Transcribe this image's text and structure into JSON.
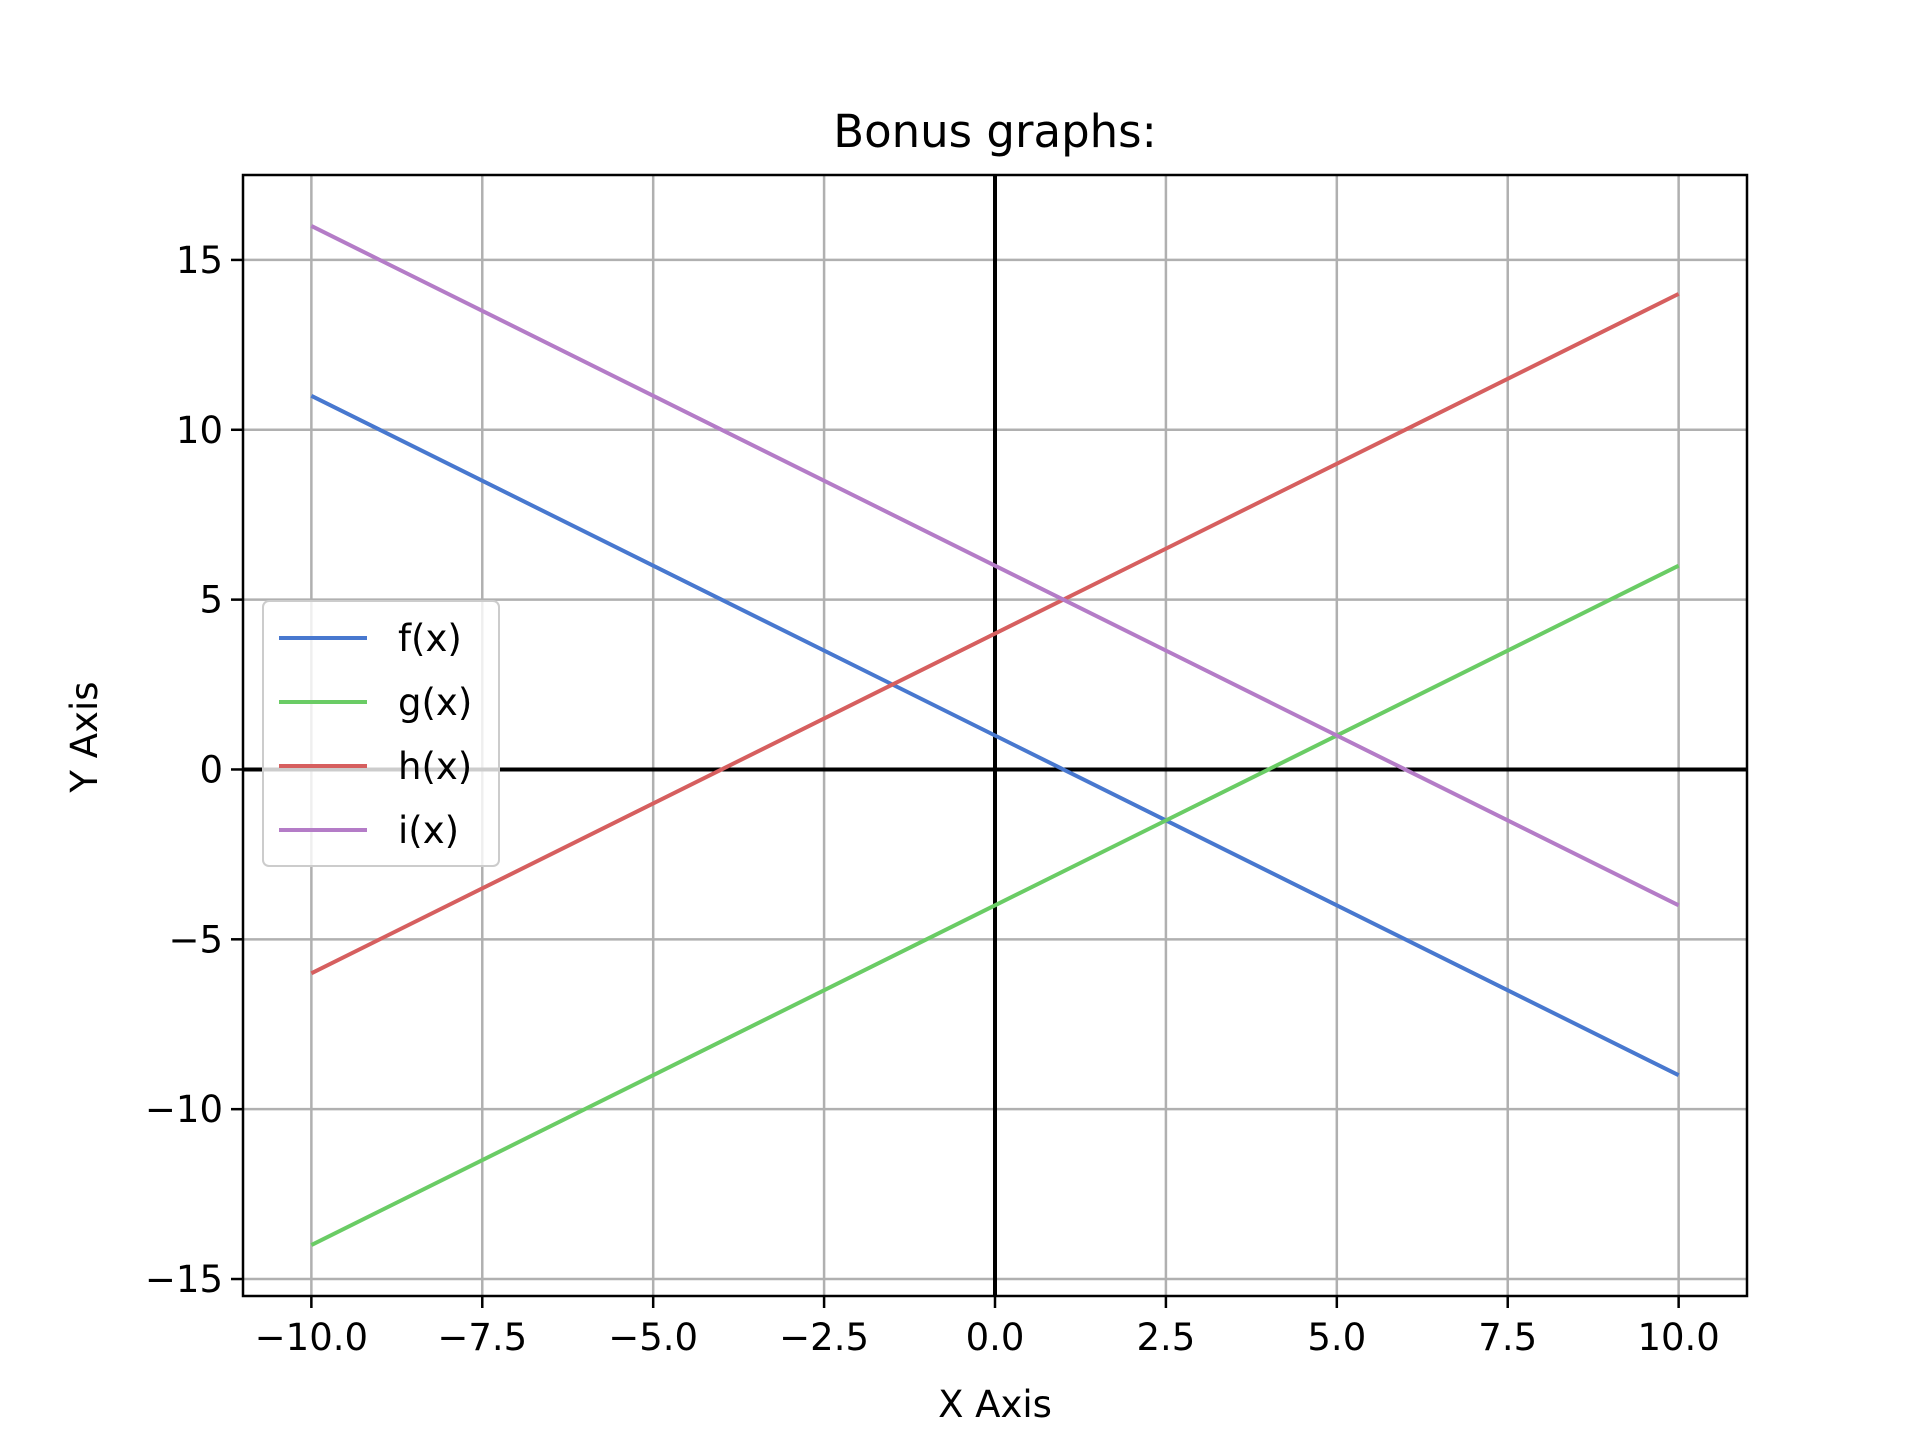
{
  "chart_data": {
    "type": "line",
    "title": "Bonus graphs:",
    "xlabel": "X Axis",
    "ylabel": "Y Axis",
    "xlim": [
      -11,
      11
    ],
    "ylim": [
      -15.5,
      17.5
    ],
    "grid": true,
    "legend_position": "center-left",
    "x_ticks": [
      -10.0,
      -7.5,
      -5.0,
      -2.5,
      0.0,
      2.5,
      5.0,
      7.5,
      10.0
    ],
    "x_tick_labels": [
      "−10.0",
      "−7.5",
      "−5.0",
      "−2.5",
      "0.0",
      "2.5",
      "5.0",
      "7.5",
      "10.0"
    ],
    "y_ticks": [
      -15,
      -10,
      -5,
      0,
      5,
      10,
      15
    ],
    "y_tick_labels": [
      "−15",
      "−10",
      "−5",
      "0",
      "5",
      "10",
      "15"
    ],
    "x": [
      -10,
      0,
      10
    ],
    "series": [
      {
        "name": "f(x)",
        "color": "#4878cf",
        "values": [
          11,
          1,
          -9
        ]
      },
      {
        "name": "g(x)",
        "color": "#6acc65",
        "values": [
          -14,
          -4,
          6
        ]
      },
      {
        "name": "h(x)",
        "color": "#d65f5f",
        "values": [
          -6,
          4,
          14
        ]
      },
      {
        "name": "i(x)",
        "color": "#b47cc7",
        "values": [
          16,
          6,
          -4
        ]
      }
    ],
    "zero_lines_color": "#000000",
    "grid_color": "#b0b0b0"
  }
}
